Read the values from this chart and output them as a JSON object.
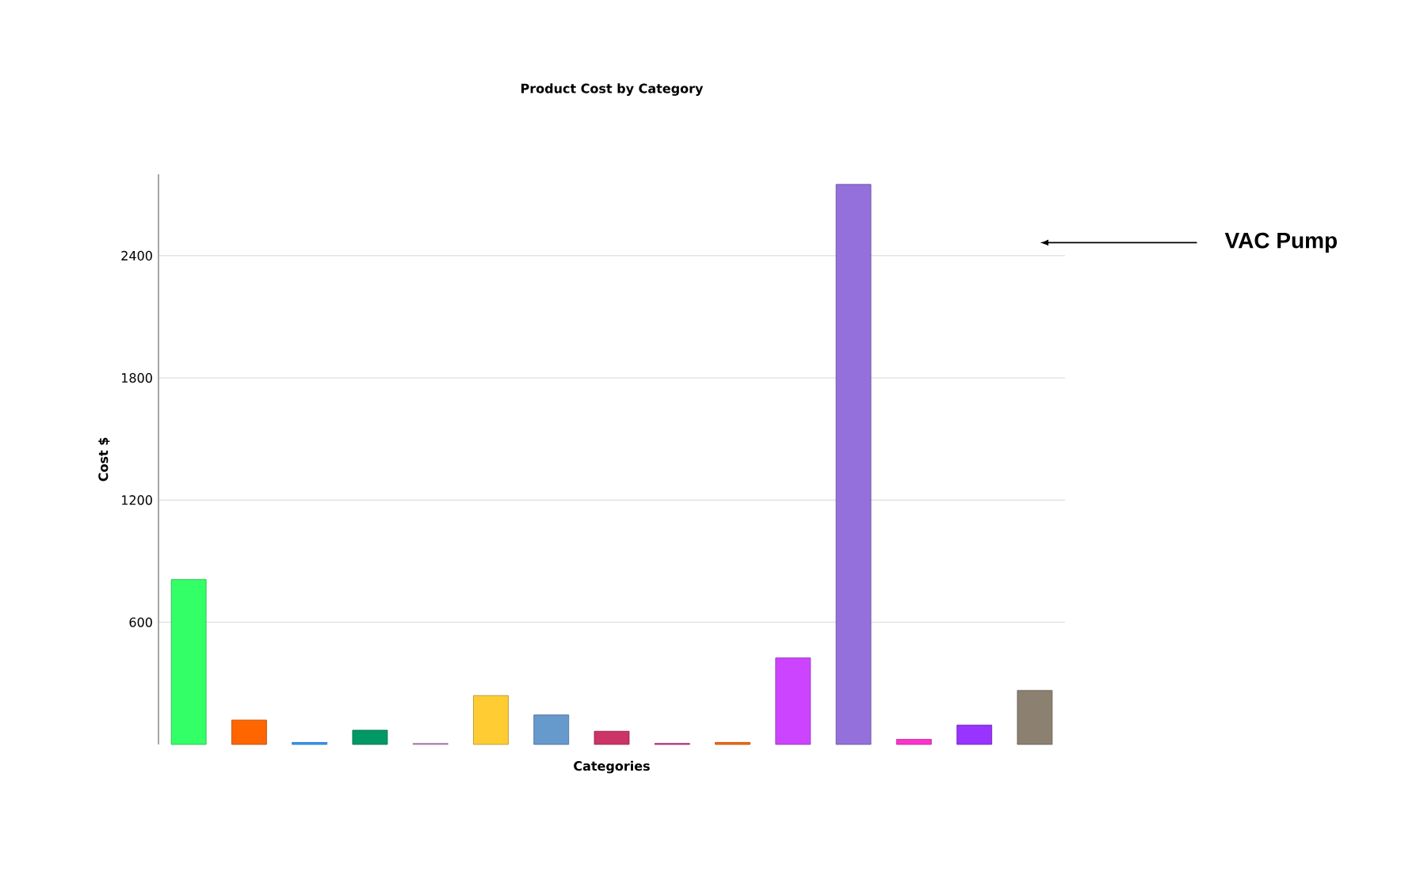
{
  "chart_data": {
    "type": "bar",
    "title": "Product Cost by Category",
    "xlabel": "Categories",
    "ylabel": "Cost $",
    "categories": [
      null,
      null,
      null,
      null,
      null,
      null,
      null,
      null,
      null,
      null,
      null,
      null,
      null,
      null,
      null
    ],
    "values": [
      810,
      120,
      10,
      70,
      5,
      240,
      145,
      65,
      5,
      10,
      425,
      2750,
      25,
      95,
      265
    ],
    "colors": [
      "#33ff66",
      "#ff6600",
      "#3399ff",
      "#009966",
      "#cc99cc",
      "#ffcc33",
      "#6699cc",
      "#cc3366",
      "#cc3399",
      "#ff6600",
      "#cc44ff",
      "#9370db",
      "#ff33cc",
      "#9933ff",
      "#8c8070"
    ],
    "ylim": [
      0,
      2800
    ],
    "yticks": [
      600,
      1200,
      1800,
      2400
    ],
    "grid": "y",
    "annotations": [
      "VAC Pump"
    ]
  }
}
